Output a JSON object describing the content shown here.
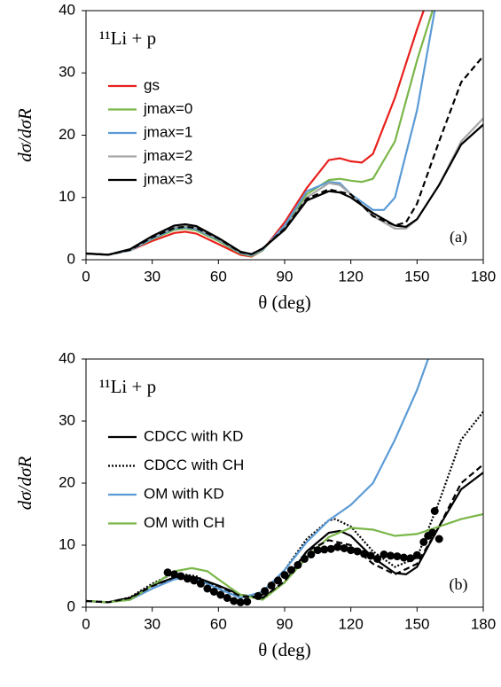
{
  "chart_data": [
    {
      "type": "line",
      "annotation": "¹¹Li + p",
      "panel_label": "(a)",
      "x_label": "θ (deg)",
      "y_label": "dσ/dσR",
      "xlim": [
        0,
        180
      ],
      "ylim": [
        0,
        40
      ],
      "xticks": [
        0,
        30,
        60,
        90,
        120,
        150,
        180
      ],
      "yticks": [
        0,
        10,
        20,
        30,
        40
      ],
      "grid": false,
      "legend": "upper left",
      "series": [
        {
          "name": "gs",
          "color": "#e8201c",
          "style": "solid",
          "x": [
            0,
            10,
            20,
            30,
            40,
            45,
            50,
            60,
            70,
            75,
            80,
            90,
            100,
            110,
            115,
            120,
            125,
            130,
            140,
            150,
            153
          ],
          "values": [
            1,
            0.8,
            1.5,
            3,
            4.3,
            4.5,
            4.2,
            2.5,
            0.8,
            0.5,
            1.5,
            6,
            11.5,
            16,
            16.3,
            15.8,
            15.6,
            17,
            26,
            37,
            40
          ]
        },
        {
          "name": "jmax=0",
          "color": "#7ab648",
          "style": "solid",
          "x": [
            0,
            10,
            20,
            30,
            40,
            45,
            50,
            60,
            70,
            75,
            80,
            90,
            100,
            110,
            115,
            120,
            125,
            130,
            140,
            150,
            157
          ],
          "values": [
            1,
            0.8,
            1.5,
            3.3,
            4.8,
            5,
            4.7,
            3,
            1,
            0.6,
            1.5,
            5.5,
            10.5,
            12.8,
            13,
            12.7,
            12.5,
            13,
            19,
            32,
            40
          ]
        },
        {
          "name": "jmax=1",
          "color": "#5b9bd5",
          "style": "solid",
          "x": [
            0,
            10,
            20,
            30,
            40,
            45,
            50,
            60,
            70,
            75,
            80,
            90,
            100,
            110,
            115,
            120,
            130,
            135,
            140,
            150,
            158
          ],
          "values": [
            1,
            0.8,
            1.5,
            3.4,
            5,
            5.2,
            4.9,
            3.2,
            1.1,
            0.7,
            1.6,
            5.5,
            11,
            12.5,
            12.3,
            10.5,
            8,
            8,
            10,
            24,
            40
          ]
        },
        {
          "name": "jmax=2",
          "color": "#a6a6a6",
          "style": "solid",
          "x": [
            0,
            10,
            20,
            30,
            40,
            45,
            50,
            60,
            70,
            75,
            80,
            90,
            100,
            110,
            115,
            120,
            130,
            140,
            145,
            150,
            160,
            170,
            180
          ],
          "values": [
            1,
            0.8,
            1.6,
            3.6,
            5.2,
            5.4,
            5.1,
            3.3,
            1.2,
            0.8,
            1.7,
            5,
            10,
            12.3,
            12,
            10.5,
            7,
            5,
            5,
            6.5,
            12,
            19,
            22.7
          ]
        },
        {
          "name": "jmax=3",
          "color": "#000000",
          "style": "solid",
          "x": [
            0,
            10,
            20,
            30,
            40,
            45,
            50,
            60,
            70,
            75,
            80,
            90,
            100,
            110,
            115,
            120,
            130,
            140,
            145,
            150,
            160,
            170,
            180
          ],
          "values": [
            1,
            0.8,
            1.7,
            3.8,
            5.5,
            5.7,
            5.4,
            3.5,
            1.3,
            0.9,
            1.8,
            4.8,
            9.5,
            11,
            10.8,
            10,
            7.5,
            5.5,
            5.3,
            6.5,
            12,
            18.5,
            21.7
          ]
        },
        {
          "color": "#000000",
          "style": "dashed",
          "x": [
            0,
            10,
            20,
            30,
            40,
            45,
            50,
            60,
            70,
            75,
            80,
            90,
            100,
            110,
            120,
            130,
            140,
            145,
            150,
            160,
            170,
            180
          ],
          "values": [
            1,
            0.8,
            1.6,
            3.6,
            5.1,
            5.3,
            5.1,
            3.4,
            1.2,
            0.9,
            1.8,
            5,
            9.8,
            11.3,
            10.5,
            7,
            5.5,
            6,
            9,
            19,
            28.5,
            32.7
          ]
        }
      ]
    },
    {
      "type": "line",
      "annotation": "¹¹Li + p",
      "panel_label": "(b)",
      "x_label": "θ (deg)",
      "y_label": "dσ/dσR",
      "xlim": [
        0,
        180
      ],
      "ylim": [
        0,
        40
      ],
      "xticks": [
        0,
        30,
        60,
        90,
        120,
        150,
        180
      ],
      "yticks": [
        0,
        10,
        20,
        30,
        40
      ],
      "grid": false,
      "legend": "upper left",
      "series": [
        {
          "name": "CDCC with KD",
          "color": "#000000",
          "style": "solid",
          "x": [
            0,
            10,
            20,
            30,
            40,
            45,
            50,
            60,
            70,
            80,
            90,
            100,
            110,
            115,
            120,
            130,
            140,
            145,
            150,
            160,
            170,
            180
          ],
          "values": [
            1,
            0.8,
            1.5,
            3.5,
            4.8,
            5,
            4.8,
            3.5,
            2,
            1.5,
            4,
            9,
            12,
            12.3,
            11.5,
            8,
            5.5,
            5.3,
            6.5,
            13,
            19,
            21.7
          ]
        },
        {
          "name": "CDCC with CH",
          "color": "#000000",
          "style": "dotted",
          "x": [
            0,
            10,
            20,
            30,
            40,
            50,
            60,
            70,
            80,
            90,
            100,
            110,
            113,
            120,
            130,
            140,
            150,
            160,
            170,
            180
          ],
          "values": [
            1,
            0.8,
            1.6,
            3.8,
            5.5,
            5,
            3,
            1.5,
            2,
            6,
            11,
            14,
            14.2,
            13,
            9,
            6.5,
            8,
            17,
            27,
            31.5
          ]
        },
        {
          "name": "OM with KD",
          "color": "#5b9bd5",
          "style": "solid",
          "x": [
            0,
            10,
            20,
            30,
            40,
            45,
            50,
            60,
            70,
            80,
            90,
            100,
            110,
            120,
            130,
            140,
            150,
            155
          ],
          "values": [
            1,
            0.8,
            1.2,
            3,
            4.5,
            4.8,
            4.5,
            3,
            1.5,
            2.5,
            6,
            10.5,
            14,
            16.5,
            20,
            27,
            35,
            40
          ]
        },
        {
          "name": "OM with CH",
          "color": "#7ab648",
          "style": "solid",
          "x": [
            0,
            10,
            20,
            30,
            40,
            48,
            55,
            60,
            70,
            80,
            90,
            100,
            110,
            120,
            130,
            140,
            150,
            160,
            170,
            180
          ],
          "values": [
            1,
            0.8,
            1.2,
            3.5,
            5.8,
            6.3,
            5.8,
            4.5,
            2,
            1.2,
            4,
            8,
            11.3,
            12.8,
            12.5,
            11.5,
            11.8,
            13,
            14.2,
            15
          ]
        },
        {
          "color": "#000000",
          "style": "dashed",
          "x": [
            0,
            10,
            20,
            30,
            40,
            45,
            50,
            60,
            70,
            80,
            90,
            100,
            110,
            120,
            130,
            140,
            150,
            160,
            170,
            180
          ],
          "values": [
            1,
            0.8,
            1.5,
            3.4,
            4.8,
            5,
            4.8,
            3.4,
            1.8,
            1.5,
            4.2,
            9,
            10.8,
            10,
            7,
            5.3,
            7,
            13,
            20,
            23
          ]
        },
        {
          "color": "#000000",
          "style": "points",
          "x": [
            37,
            40,
            43,
            46,
            49,
            52,
            55,
            58,
            61,
            64,
            67,
            70,
            73,
            78,
            81,
            84,
            87,
            90,
            93,
            96,
            99,
            102,
            105,
            108,
            111,
            114,
            117,
            120,
            123,
            126,
            129,
            132,
            135,
            138,
            141,
            144,
            147,
            150,
            153,
            155,
            157,
            158,
            160
          ],
          "values": [
            5.6,
            5.3,
            5,
            4.6,
            4.3,
            3.8,
            3,
            2.5,
            2,
            1.5,
            1,
            0.8,
            0.9,
            1.8,
            2.6,
            3.5,
            4.3,
            5.2,
            6,
            6.8,
            7.8,
            8.5,
            9.2,
            9.3,
            9.4,
            9.7,
            9.5,
            9.2,
            9,
            8.6,
            8.3,
            7.8,
            8.5,
            8.3,
            8.2,
            8,
            7.9,
            8.4,
            10.5,
            11.5,
            12,
            15.5,
            11
          ]
        }
      ]
    }
  ]
}
